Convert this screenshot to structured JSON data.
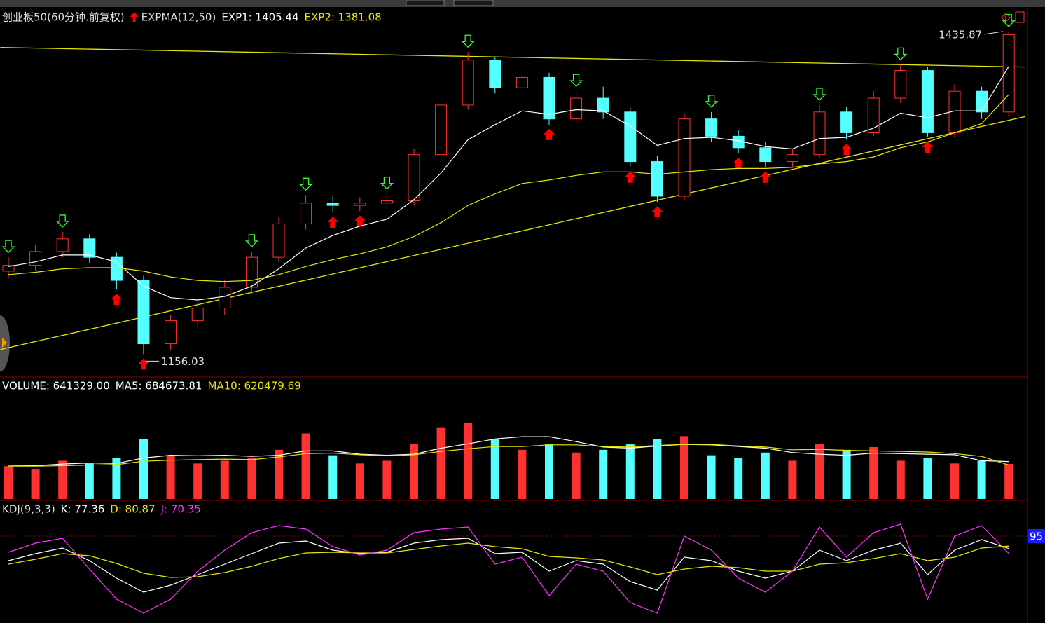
{
  "chart_data": [
    {
      "type": "candlestick",
      "title": "创业板50(60分钟.前复权)",
      "indicator": "EXPMA(12,50)",
      "open": [
        1228,
        1233,
        1245,
        1256,
        1240,
        1220,
        1165,
        1185,
        1196,
        1214,
        1240,
        1269,
        1287,
        1285,
        1287,
        1289,
        1329,
        1372,
        1411,
        1387,
        1396,
        1360,
        1378,
        1366,
        1323,
        1293,
        1360,
        1345,
        1335,
        1323,
        1329,
        1366,
        1348,
        1378,
        1402,
        1348,
        1384,
        1366
      ],
      "high": [
        1240,
        1251,
        1262,
        1260,
        1244,
        1224,
        1190,
        1202,
        1220,
        1245,
        1275,
        1294,
        1293,
        1292,
        1295,
        1334,
        1378,
        1418,
        1414,
        1402,
        1400,
        1384,
        1388,
        1370,
        1328,
        1365,
        1366,
        1350,
        1340,
        1334,
        1372,
        1370,
        1384,
        1407,
        1405,
        1390,
        1388,
        1435.87
      ],
      "low": [
        1222,
        1228,
        1240,
        1235,
        1212,
        1156.03,
        1160,
        1180,
        1190,
        1208,
        1236,
        1264,
        1279,
        1280,
        1282,
        1285,
        1324,
        1368,
        1382,
        1382,
        1355,
        1356,
        1360,
        1318,
        1288,
        1290,
        1340,
        1330,
        1318,
        1318,
        1326,
        1342,
        1345,
        1374,
        1344,
        1344,
        1360,
        1362
      ],
      "close": [
        1233,
        1245,
        1256,
        1240,
        1220,
        1165,
        1185,
        1196,
        1214,
        1240,
        1269,
        1287,
        1285,
        1287,
        1289,
        1329,
        1372,
        1411,
        1387,
        1396,
        1360,
        1378,
        1366,
        1323,
        1293,
        1360,
        1345,
        1335,
        1323,
        1329,
        1366,
        1348,
        1378,
        1402,
        1348,
        1384,
        1366,
        1433
      ],
      "up_color": "#ff3232",
      "down_color": "#54ffff",
      "signals": [
        "sell",
        null,
        "sell",
        null,
        "buy",
        "buy",
        null,
        null,
        null,
        "sell",
        null,
        "sell",
        "buy",
        "buy",
        "sell",
        null,
        null,
        "sell",
        null,
        null,
        "buy",
        "sell",
        null,
        "buy",
        "buy",
        null,
        "sell",
        "buy",
        "buy",
        null,
        "sell",
        "buy",
        null,
        "sell",
        "buy",
        null,
        null,
        "sell"
      ],
      "buy_color": "#ff0000",
      "sell_color": "#33ff33",
      "series": [
        {
          "name": "EXP1",
          "label": "EXP1: 1405.44",
          "color": "#ffffff",
          "values": [
            1232,
            1236,
            1242,
            1242,
            1236,
            1215,
            1205,
            1203,
            1206,
            1215,
            1230,
            1248,
            1259,
            1267,
            1273,
            1290,
            1313,
            1342,
            1355,
            1367,
            1364,
            1368,
            1367,
            1354,
            1337,
            1343,
            1344,
            1341,
            1336,
            1334,
            1343,
            1344,
            1352,
            1365,
            1361,
            1367,
            1367,
            1405.44
          ]
        },
        {
          "name": "EXP2",
          "label": "EXP2: 1381.08",
          "color": "#e6e600",
          "values": [
            1225,
            1227,
            1230,
            1231,
            1231,
            1228,
            1223,
            1220,
            1219,
            1220,
            1225,
            1232,
            1238,
            1243,
            1249,
            1258,
            1270,
            1285,
            1295,
            1304,
            1307,
            1311,
            1314,
            1314,
            1312,
            1314,
            1316,
            1317,
            1317,
            1318,
            1321,
            1323,
            1327,
            1335,
            1340,
            1348,
            1356,
            1381.08
          ]
        }
      ],
      "trend_lines": [
        {
          "color": "#e6e600",
          "start": [
            -0.3,
            1422
          ],
          "end": [
            37.6,
            1405
          ]
        },
        {
          "color": "#e6e600",
          "start": [
            -0.3,
            1160
          ],
          "end": [
            37.6,
            1362
          ]
        }
      ],
      "ylim": [
        1138,
        1454
      ]
    },
    {
      "type": "volume_bar",
      "up_color": "#ff3232",
      "down_color": "#54ffff",
      "series": [
        {
          "name": "VOLUME",
          "label": "VOLUME: 641329.00",
          "color": "#ffffff",
          "values": [
            600000,
            550000,
            700000,
            650000,
            750000,
            1100000,
            800000,
            650000,
            700000,
            750000,
            900000,
            1200000,
            800000,
            650000,
            700000,
            1000000,
            1300000,
            1400000,
            1100000,
            900000,
            1000000,
            850000,
            900000,
            1000000,
            1100000,
            1150000,
            800000,
            750000,
            850000,
            700000,
            1000000,
            900000,
            950000,
            700000,
            750000,
            650000,
            700000,
            641329
          ]
        },
        {
          "name": "MA5",
          "label": "MA5: 684673.81",
          "color": "#ffffff",
          "values": [
            620000,
            610000,
            640000,
            660000,
            650000,
            750000,
            800000,
            790000,
            800000,
            780000,
            800000,
            880000,
            880000,
            820000,
            800000,
            820000,
            930000,
            1010000,
            1100000,
            1140000,
            1140000,
            1050000,
            950000,
            930000,
            970000,
            1000000,
            990000,
            960000,
            930000,
            850000,
            820000,
            800000,
            840000,
            830000,
            820000,
            810000,
            700000,
            684673.81
          ]
        },
        {
          "name": "MA10",
          "label": "MA10: 620479.69",
          "color": "#e6e600",
          "values": [
            600000,
            600000,
            610000,
            620000,
            630000,
            690000,
            710000,
            720000,
            730000,
            720000,
            770000,
            830000,
            840000,
            810000,
            790000,
            810000,
            870000,
            920000,
            960000,
            960000,
            990000,
            990000,
            960000,
            950000,
            980000,
            1000000,
            1000000,
            970000,
            950000,
            900000,
            910000,
            890000,
            880000,
            870000,
            860000,
            830000,
            780000,
            620479.69
          ]
        }
      ],
      "ylim": [
        0,
        1950000
      ]
    },
    {
      "type": "line",
      "indicator": "KDJ(9,3,3)",
      "series": [
        {
          "name": "K",
          "label": "K: 77.36",
          "color": "#ffffff",
          "values": [
            60,
            70,
            78,
            60,
            35,
            15,
            25,
            40,
            55,
            70,
            85,
            88,
            75,
            70,
            72,
            85,
            90,
            92,
            70,
            72,
            45,
            60,
            55,
            30,
            18,
            65,
            60,
            45,
            35,
            45,
            75,
            60,
            75,
            85,
            40,
            75,
            90,
            77.36
          ]
        },
        {
          "name": "D",
          "label": "D: 80.87",
          "color": "#e6e600",
          "values": [
            55,
            62,
            70,
            67,
            56,
            42,
            36,
            37,
            43,
            52,
            63,
            71,
            72,
            71,
            71,
            76,
            81,
            85,
            80,
            77,
            66,
            64,
            61,
            51,
            40,
            48,
            52,
            50,
            45,
            45,
            55,
            57,
            63,
            70,
            60,
            65,
            78,
            80.87
          ]
        },
        {
          "name": "J",
          "label": "J: 70.35",
          "color": "#ff33ff",
          "values": [
            72,
            85,
            92,
            48,
            5,
            -15,
            5,
            45,
            75,
            100,
            110,
            105,
            80,
            68,
            75,
            100,
            105,
            108,
            55,
            65,
            10,
            55,
            45,
            0,
            -15,
            95,
            75,
            35,
            15,
            45,
            108,
            65,
            100,
            112,
            5,
            95,
            110,
            70.35
          ]
        }
      ],
      "ylim": [
        -25,
        125
      ],
      "yticks": [
        95
      ]
    }
  ]
}
